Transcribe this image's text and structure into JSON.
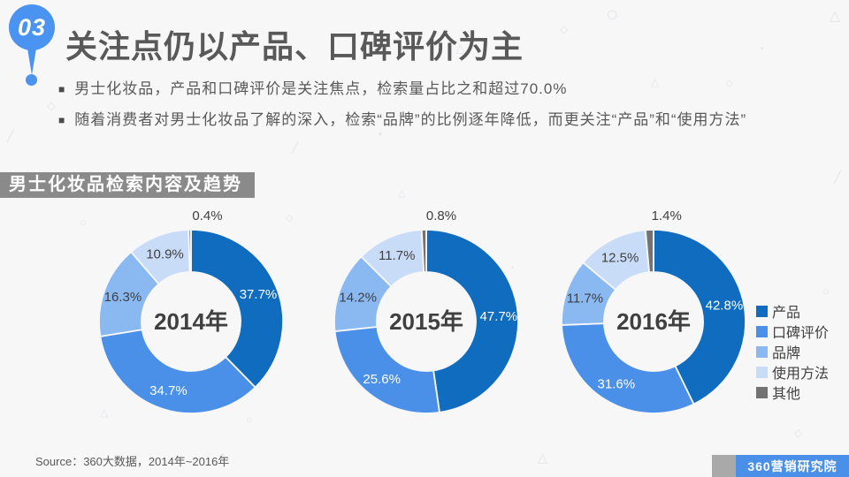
{
  "slide": {
    "badge": "03",
    "title": "关注点仍以产品、口碑评价为主",
    "bullets": [
      "男士化妆品，产品和口碑评价是关注焦点，检索量占比之和超过70.0%",
      "随着消费者对男士化妆品了解的深入，检索“品牌”的比例逐年降低，而更关注“产品”和“使用方法”"
    ],
    "section_banner": "男士化妆品检索内容及趋势",
    "source": "Source：360大数据，2014年~2016年",
    "footer_logo": "360营销研究院"
  },
  "icons": {
    "bullet": "■"
  },
  "colors": {
    "background": "#f7f7f8",
    "accent_blue": "#4a93f0",
    "banner_gray": "#8a8a8a",
    "footer_blue": "#4a90e8",
    "footer_gray": "#a9a9a9",
    "text_dark": "#595959",
    "label_dark": "#404040"
  },
  "chart_data": {
    "type": "pie",
    "subtype": "donut",
    "title": "男士化妆品检索内容及趋势",
    "categories": [
      "产品",
      "口碑评价",
      "品牌",
      "使用方法",
      "其他"
    ],
    "palette": [
      "#0f6cbf",
      "#4a90e8",
      "#8ab9f1",
      "#c9dcf7",
      "#737373"
    ],
    "label_unit": "%",
    "legend_position": "right",
    "charts": [
      {
        "center_label": "2014年",
        "values": [
          37.7,
          34.7,
          16.3,
          10.9,
          0.4
        ]
      },
      {
        "center_label": "2015年",
        "values": [
          47.7,
          25.6,
          14.2,
          11.7,
          0.8
        ]
      },
      {
        "center_label": "2016年",
        "values": [
          42.8,
          31.6,
          11.7,
          12.5,
          1.4
        ]
      }
    ]
  }
}
